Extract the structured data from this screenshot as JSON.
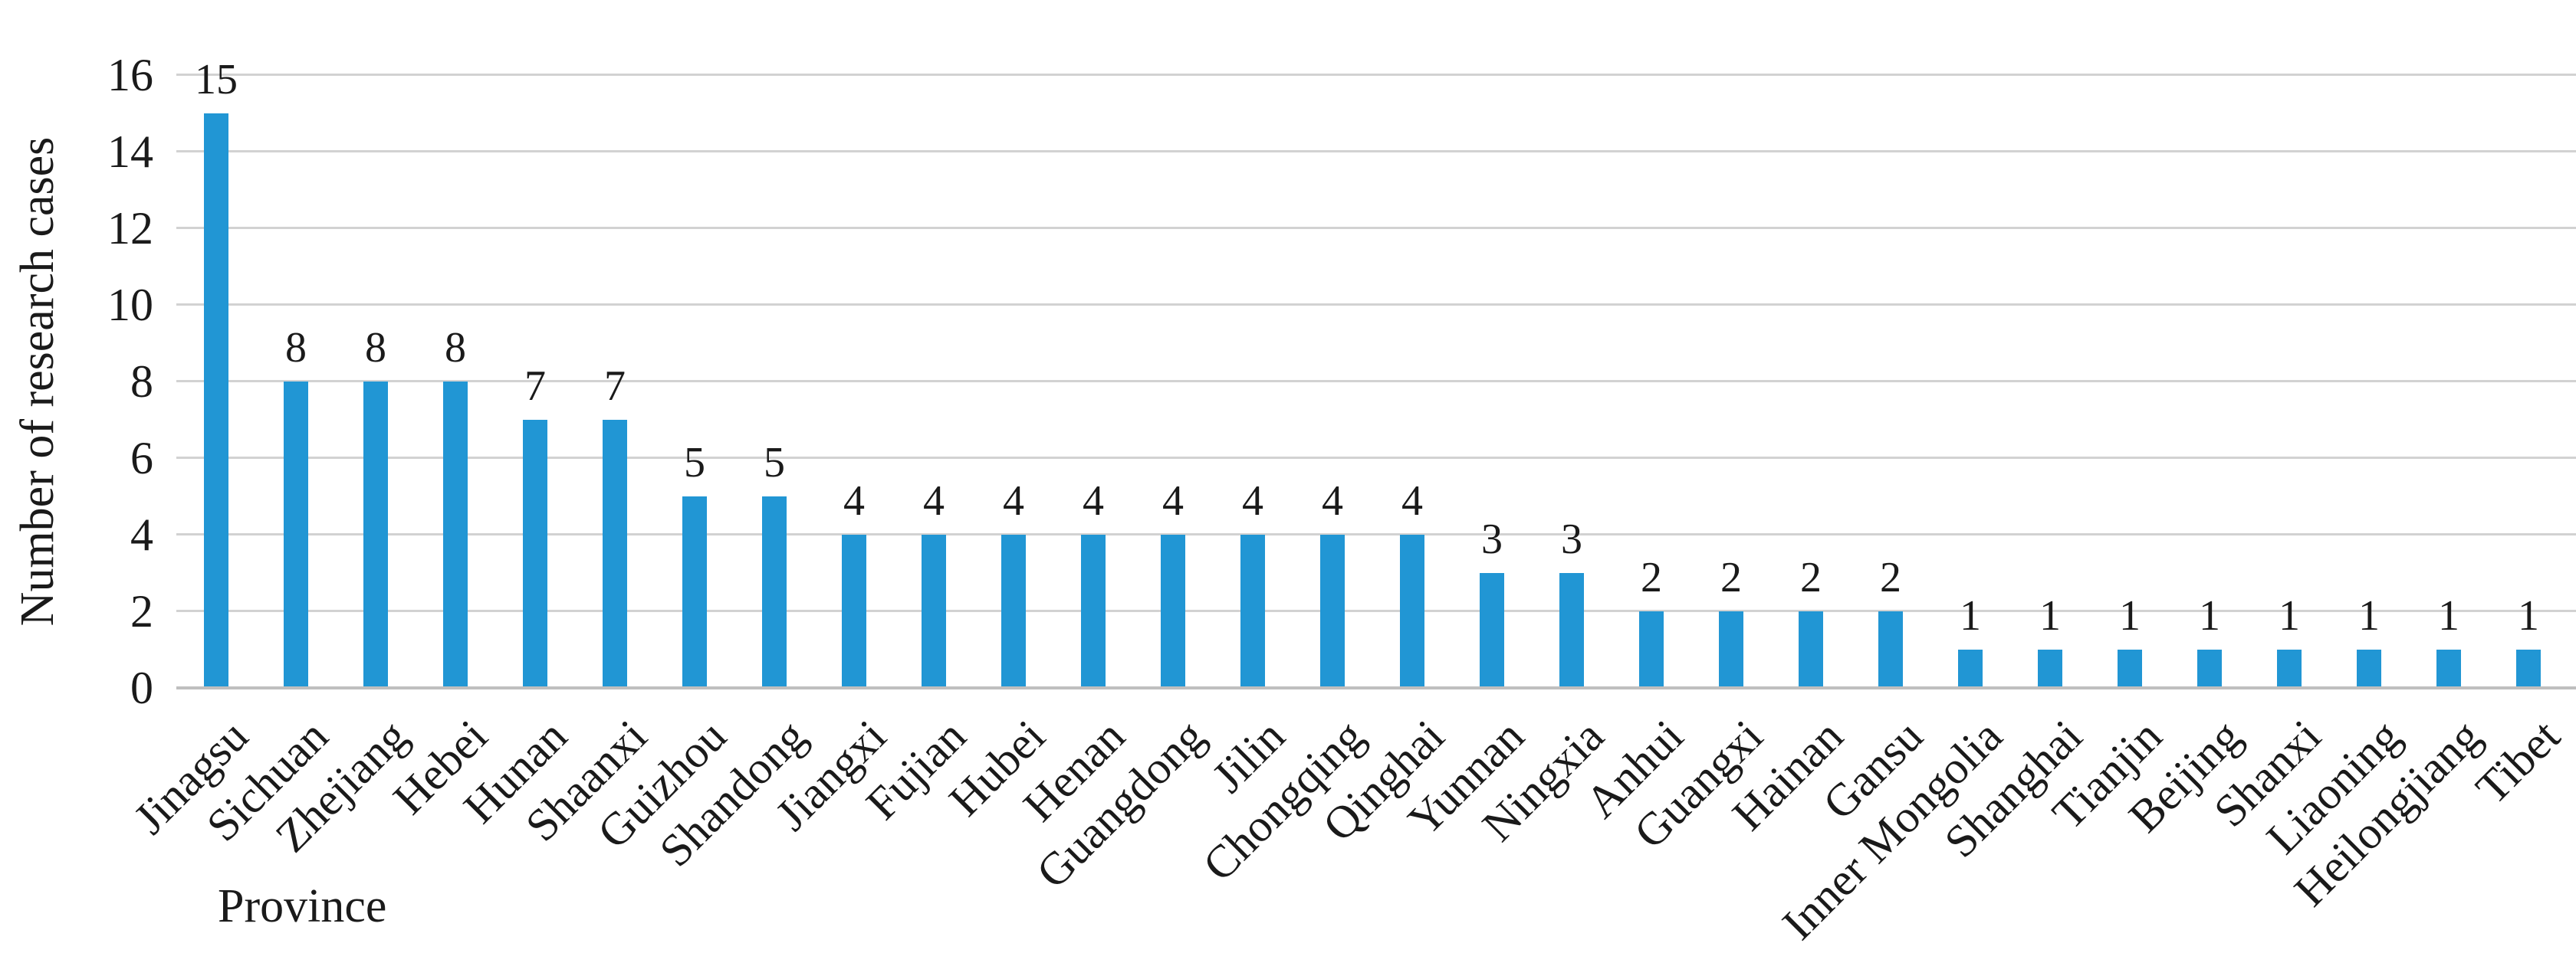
{
  "chart_data": {
    "type": "bar",
    "title": "",
    "xlabel": "Province",
    "ylabel": "Number of research cases",
    "categories": [
      "Jinagsu",
      "Sichuan",
      "Zhejiang",
      "Hebei",
      "Hunan",
      "Shaanxi",
      "Guizhou",
      "Shandong",
      "Jiangxi",
      "Fujian",
      "Hubei",
      "Henan",
      "Guangdong",
      "Jilin",
      "Chongqing",
      "Qinghai",
      "Yunnan",
      "Ningxia",
      "Anhui",
      "Guangxi",
      "Hainan",
      "Gansu",
      "Inner Mongolia",
      "Shanghai",
      "Tianjin",
      "Beijing",
      "Shanxi",
      "Liaoning",
      "Heilongjiang",
      "Tibet"
    ],
    "values": [
      15,
      8,
      8,
      8,
      7,
      7,
      5,
      5,
      4,
      4,
      4,
      4,
      4,
      4,
      4,
      4,
      3,
      3,
      2,
      2,
      2,
      2,
      1,
      1,
      1,
      1,
      1,
      1,
      1,
      1
    ],
    "value_labels": [
      "15",
      "8",
      "8",
      "8",
      "7",
      "7",
      "5",
      "5",
      "4",
      "4",
      "4",
      "4",
      "4",
      "4",
      "4",
      "4",
      "3",
      "3",
      "2",
      "2",
      "2",
      "2",
      "1",
      "1",
      "1",
      "1",
      "1",
      "1",
      "1",
      "1"
    ],
    "ytick_labels": [
      "0",
      "2",
      "4",
      "6",
      "8",
      "10",
      "12",
      "14",
      "16"
    ],
    "ylim": [
      0,
      16
    ],
    "ytick_step": 2,
    "grid": true,
    "legend": "none",
    "colors": {
      "bar": "#2196d4",
      "gridline": "#d2d2d2",
      "axis_line": "#bfbfbf",
      "text": "#1a1a1a"
    }
  }
}
